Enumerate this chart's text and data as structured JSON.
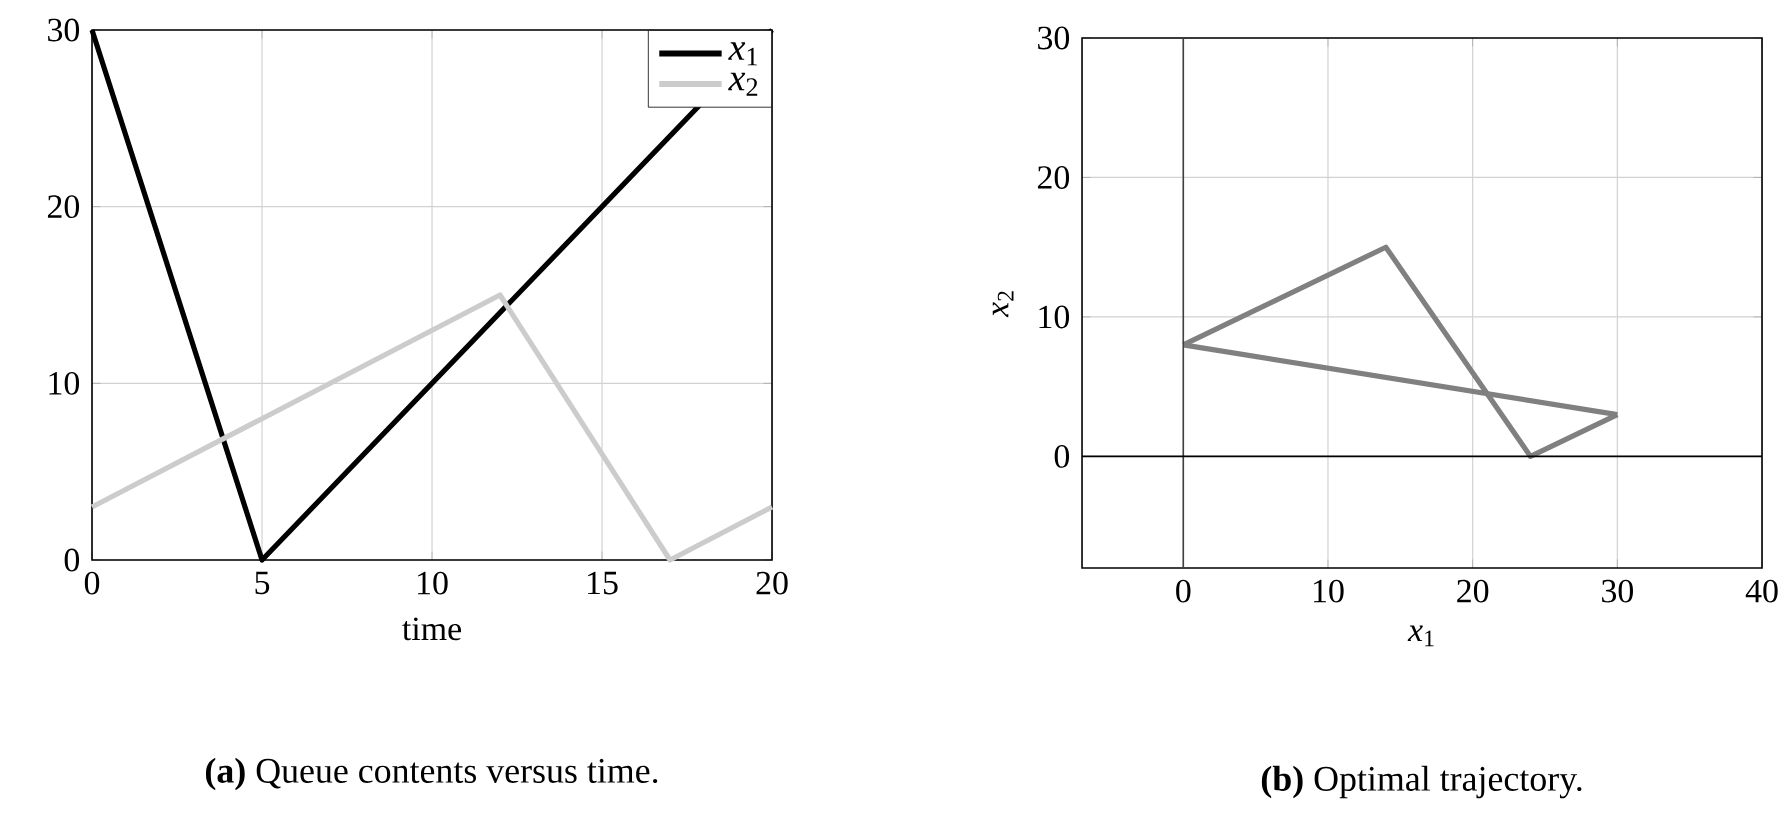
{
  "chart_data": [
    {
      "type": "line",
      "xlabel": "time",
      "xlim": [
        0,
        20
      ],
      "ylim": [
        0,
        30
      ],
      "xticks": [
        0,
        5,
        10,
        15,
        20
      ],
      "yticks": [
        0,
        10,
        20,
        30
      ],
      "grid": true,
      "legend": "top right",
      "series": [
        {
          "name": "*x*$_{1}$",
          "color": "#000000",
          "x": [
            0,
            5,
            20
          ],
          "values": [
            30,
            0,
            30
          ]
        },
        {
          "name": "*x*$_{2}$",
          "color": "#cccccc",
          "x": [
            0,
            12,
            17,
            20
          ],
          "values": [
            3,
            15,
            0,
            3
          ]
        }
      ],
      "annotations": [
        "**(a)** Queue contents versus time."
      ]
    },
    {
      "type": "line",
      "xlabel": "*x*$_{1}$",
      "ylabel": "*x*$_{2}$",
      "xlim": [
        -7,
        40
      ],
      "ylim": [
        -8,
        30
      ],
      "xticks": [
        0,
        10,
        20,
        30,
        40
      ],
      "yticks": [
        0,
        10,
        20,
        30
      ],
      "grid": true,
      "series": [
        {
          "color": "#808080",
          "x": [
            0,
            14,
            24,
            30
          ],
          "values": [
            8,
            15,
            0,
            3
          ]
        },
        {
          "color": "#808080",
          "x": [
            0,
            30
          ],
          "values": [
            8,
            3
          ]
        }
      ],
      "ref_lines": [
        {
          "axis": "x",
          "value": 0,
          "color": "#404040"
        },
        {
          "axis": "y",
          "value": 0,
          "color": "#000000"
        }
      ],
      "annotations": [
        "**(b)** Optimal trajectory."
      ]
    }
  ]
}
